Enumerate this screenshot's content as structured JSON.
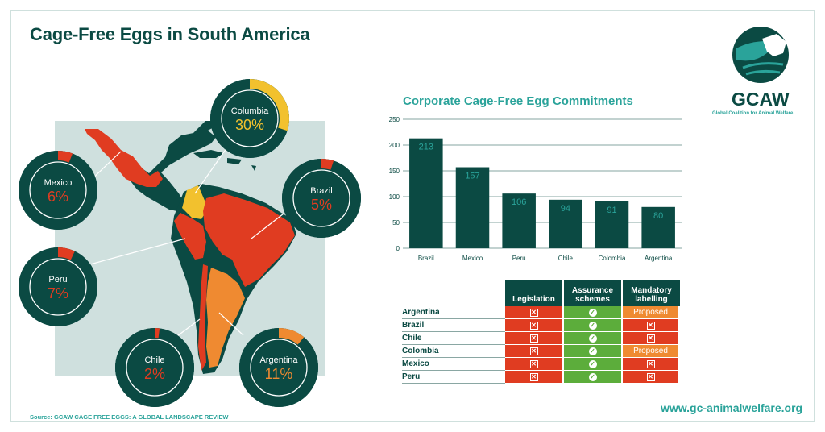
{
  "title": "Cage-Free Eggs in South America",
  "source": "Source: GCAW CAGE FREE EGGS: A GLOBAL LANDSCAPE REVIEW",
  "website": "www.gc-animalwelfare.org",
  "logo": {
    "name": "GCAW",
    "tagline": "Global Coalition for Animal Welfare"
  },
  "colors": {
    "dark_green": "#0b4a43",
    "teal": "#2aa39a",
    "red": "#e03c21",
    "orange": "#ef8a31",
    "yellow": "#f2c12e",
    "green": "#5cad3b",
    "map_bg": "#cfe0de"
  },
  "chart_data": [
    {
      "type": "pie",
      "title": "",
      "note": "Donut gauges showing the cage-free share per country",
      "slices": [
        {
          "label": "Columbia",
          "value": 30,
          "display": "30%",
          "color": "#f2c12e"
        },
        {
          "label": "Mexico",
          "value": 6,
          "display": "6%",
          "color": "#e03c21"
        },
        {
          "label": "Brazil",
          "value": 5,
          "display": "5%",
          "color": "#e03c21"
        },
        {
          "label": "Peru",
          "value": 7,
          "display": "7%",
          "color": "#e03c21"
        },
        {
          "label": "Chile",
          "value": 2,
          "display": "2%",
          "color": "#e03c21"
        },
        {
          "label": "Argentina",
          "value": 11,
          "display": "11%",
          "color": "#ef8a31"
        }
      ]
    },
    {
      "type": "bar",
      "title": "Corporate Cage-Free Egg Commitments",
      "categories": [
        "Brazil",
        "Mexico",
        "Peru",
        "Chile",
        "Colombia",
        "Argentina"
      ],
      "values": [
        213,
        157,
        106,
        94,
        91,
        80
      ],
      "yticks": [
        "0",
        "50",
        "100",
        "150",
        "200",
        "250"
      ],
      "ylim": [
        0,
        250
      ],
      "xlabel": "",
      "ylabel": "",
      "grid": true
    },
    {
      "type": "table",
      "columns": [
        "Legislation",
        "Assurance schemes",
        "Mandatory labelling"
      ],
      "rows": [
        {
          "country": "Argentina",
          "cells": [
            {
              "status": "no"
            },
            {
              "status": "yes"
            },
            {
              "status": "proposed",
              "text": "Proposed"
            }
          ]
        },
        {
          "country": "Brazil",
          "cells": [
            {
              "status": "no"
            },
            {
              "status": "yes"
            },
            {
              "status": "no"
            }
          ]
        },
        {
          "country": "Chile",
          "cells": [
            {
              "status": "no"
            },
            {
              "status": "yes"
            },
            {
              "status": "no"
            }
          ]
        },
        {
          "country": "Colombia",
          "cells": [
            {
              "status": "no"
            },
            {
              "status": "yes"
            },
            {
              "status": "proposed",
              "text": "Proposed"
            }
          ]
        },
        {
          "country": "Mexico",
          "cells": [
            {
              "status": "no"
            },
            {
              "status": "yes"
            },
            {
              "status": "no"
            }
          ]
        },
        {
          "country": "Peru",
          "cells": [
            {
              "status": "no"
            },
            {
              "status": "yes"
            },
            {
              "status": "no"
            }
          ]
        }
      ]
    }
  ]
}
